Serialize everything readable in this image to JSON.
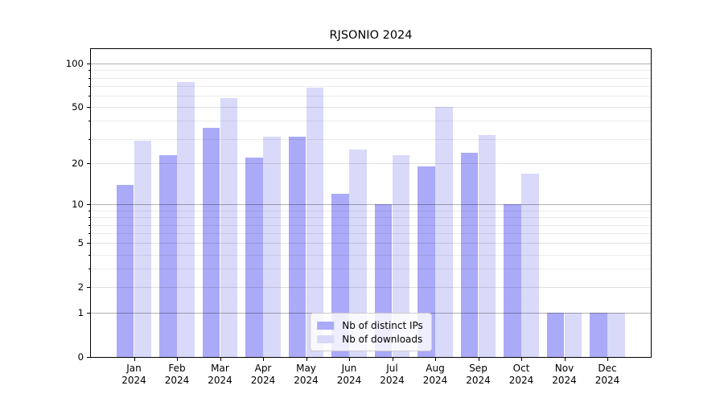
{
  "chart_data": {
    "type": "bar",
    "title": "RJSONIO 2024",
    "categories": [
      "Jan",
      "Feb",
      "Mar",
      "Apr",
      "May",
      "Jun",
      "Jul",
      "Aug",
      "Sep",
      "Oct",
      "Nov",
      "Dec"
    ],
    "category_year": "2024",
    "series": [
      {
        "name": "Nb of distinct IPs",
        "color": "#aaaaf8",
        "values": [
          14,
          23,
          36,
          22,
          31,
          12,
          10,
          19,
          24,
          10,
          1,
          1
        ]
      },
      {
        "name": "Nb of downloads",
        "color": "#d9d9fa",
        "values": [
          29,
          75,
          58,
          31,
          68,
          25,
          23,
          50,
          32,
          17,
          1,
          1
        ]
      }
    ],
    "yscale": "log1p",
    "ylim": [
      0,
      126
    ],
    "yticks_labeled": [
      100,
      50,
      20,
      10,
      5,
      2,
      1,
      0
    ],
    "gridlines_major": [
      1,
      10,
      100
    ],
    "gridlines_sub": [
      2,
      5,
      20,
      50
    ],
    "gridlines_minor": [
      3,
      4,
      6,
      7,
      8,
      9,
      30,
      40,
      60,
      70,
      80,
      90
    ],
    "legend": {
      "position": "lower center",
      "items": [
        "Nb of distinct IPs",
        "Nb of downloads"
      ]
    },
    "grid": true
  },
  "colors": {
    "ips_bar": "#aaaaf8",
    "downloads_bar": "#d9d9fa",
    "axis": "#000000",
    "grid_major": "rgba(0,0,0,0.30)",
    "grid_sub": "rgba(0,0,0,0.12)",
    "grid_minor": "rgba(0,0,0,0.075)",
    "legend_border": "#cccccc"
  }
}
